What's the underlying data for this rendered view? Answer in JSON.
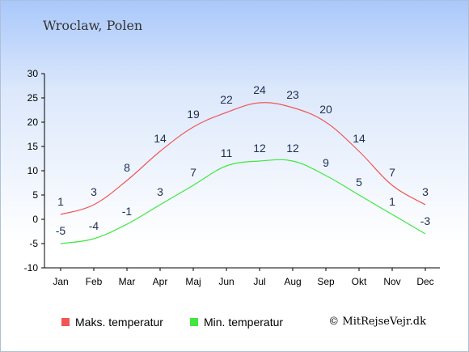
{
  "page": {
    "title": "Wroclaw, Polen",
    "copyright": "© MitRejseVejr.dk"
  },
  "colors": {
    "max": "#f25555",
    "min": "#3fe83f",
    "axis": "#000000",
    "label": "#1f2f52"
  },
  "chart_data": {
    "type": "line",
    "title": "Wroclaw, Polen",
    "xlabel": "",
    "ylabel": "",
    "categories": [
      "Jan",
      "Feb",
      "Mar",
      "Apr",
      "Maj",
      "Jun",
      "Jul",
      "Aug",
      "Sep",
      "Okt",
      "Nov",
      "Dec"
    ],
    "y_ticks": [
      30,
      25,
      20,
      15,
      10,
      5,
      0,
      -5,
      -10
    ],
    "ylim": [
      -10,
      30
    ],
    "grid": false,
    "legend_position": "bottom",
    "series": [
      {
        "name": "Maks. temperatur",
        "values": [
          1,
          3,
          8,
          14,
          19,
          22,
          24,
          23,
          20,
          14,
          7,
          3
        ],
        "color": "#f25555"
      },
      {
        "name": "Min. temperatur",
        "values": [
          -5,
          -4,
          -1,
          3,
          7,
          11,
          12,
          12,
          9,
          5,
          1,
          -3
        ],
        "color": "#3fe83f"
      }
    ]
  },
  "legend": [
    {
      "label": "Maks. temperatur",
      "color": "#f25555"
    },
    {
      "label": "Min. temperatur",
      "color": "#3fe83f"
    }
  ]
}
